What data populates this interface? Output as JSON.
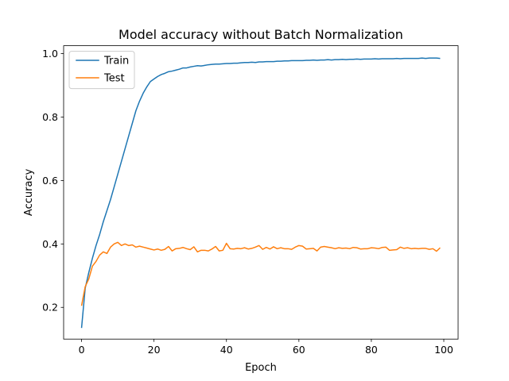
{
  "chart_data": {
    "type": "line",
    "title": "Model accuracy without Batch Normalization",
    "xlabel": "Epoch",
    "ylabel": "Accuracy",
    "xlim": [
      -4.95,
      103.95
    ],
    "ylim": [
      0.1,
      1.025
    ],
    "xticks": [
      0,
      20,
      40,
      60,
      80,
      100
    ],
    "xtick_labels": [
      "0",
      "20",
      "40",
      "60",
      "80",
      "100"
    ],
    "yticks": [
      0.2,
      0.4,
      0.6,
      0.8,
      1.0
    ],
    "ytick_labels": [
      "0.2",
      "0.4",
      "0.6",
      "0.8",
      "1.0"
    ],
    "grid": false,
    "legend": "upper-left",
    "x": [
      0,
      1,
      2,
      3,
      4,
      5,
      6,
      7,
      8,
      9,
      10,
      11,
      12,
      13,
      14,
      15,
      16,
      17,
      18,
      19,
      20,
      21,
      22,
      23,
      24,
      25,
      26,
      27,
      28,
      29,
      30,
      31,
      32,
      33,
      34,
      35,
      36,
      37,
      38,
      39,
      40,
      41,
      42,
      43,
      44,
      45,
      46,
      47,
      48,
      49,
      50,
      51,
      52,
      53,
      54,
      55,
      56,
      57,
      58,
      59,
      60,
      61,
      62,
      63,
      64,
      65,
      66,
      67,
      68,
      69,
      70,
      71,
      72,
      73,
      74,
      75,
      76,
      77,
      78,
      79,
      80,
      81,
      82,
      83,
      84,
      85,
      86,
      87,
      88,
      89,
      90,
      91,
      92,
      93,
      94,
      95,
      96,
      97,
      98,
      99
    ],
    "series": [
      {
        "name": "Train",
        "color": "#1f77b4",
        "values": [
          0.135,
          0.26,
          0.31,
          0.355,
          0.395,
          0.43,
          0.47,
          0.505,
          0.54,
          0.58,
          0.62,
          0.66,
          0.7,
          0.74,
          0.78,
          0.82,
          0.85,
          0.875,
          0.895,
          0.912,
          0.92,
          0.928,
          0.934,
          0.938,
          0.943,
          0.945,
          0.948,
          0.951,
          0.955,
          0.955,
          0.958,
          0.96,
          0.962,
          0.961,
          0.963,
          0.965,
          0.966,
          0.967,
          0.967,
          0.968,
          0.969,
          0.969,
          0.97,
          0.97,
          0.971,
          0.972,
          0.972,
          0.973,
          0.972,
          0.974,
          0.974,
          0.975,
          0.975,
          0.975,
          0.976,
          0.976,
          0.977,
          0.977,
          0.978,
          0.978,
          0.978,
          0.978,
          0.979,
          0.979,
          0.98,
          0.979,
          0.98,
          0.98,
          0.981,
          0.98,
          0.981,
          0.981,
          0.982,
          0.981,
          0.982,
          0.982,
          0.983,
          0.982,
          0.983,
          0.983,
          0.983,
          0.984,
          0.983,
          0.984,
          0.984,
          0.984,
          0.984,
          0.985,
          0.984,
          0.985,
          0.985,
          0.985,
          0.985,
          0.985,
          0.986,
          0.985,
          0.986,
          0.986,
          0.986,
          0.985
        ]
      },
      {
        "name": "Test",
        "color": "#ff7f0e",
        "values": [
          0.205,
          0.265,
          0.29,
          0.33,
          0.345,
          0.365,
          0.375,
          0.37,
          0.39,
          0.4,
          0.405,
          0.395,
          0.4,
          0.395,
          0.397,
          0.39,
          0.393,
          0.39,
          0.387,
          0.384,
          0.381,
          0.384,
          0.38,
          0.383,
          0.392,
          0.378,
          0.385,
          0.386,
          0.389,
          0.385,
          0.382,
          0.391,
          0.375,
          0.38,
          0.38,
          0.378,
          0.384,
          0.392,
          0.378,
          0.38,
          0.402,
          0.385,
          0.384,
          0.386,
          0.385,
          0.388,
          0.384,
          0.386,
          0.39,
          0.395,
          0.383,
          0.389,
          0.384,
          0.391,
          0.385,
          0.388,
          0.385,
          0.385,
          0.383,
          0.39,
          0.395,
          0.393,
          0.384,
          0.385,
          0.386,
          0.378,
          0.39,
          0.392,
          0.39,
          0.388,
          0.385,
          0.388,
          0.386,
          0.387,
          0.385,
          0.389,
          0.388,
          0.384,
          0.385,
          0.385,
          0.388,
          0.387,
          0.385,
          0.389,
          0.39,
          0.38,
          0.381,
          0.382,
          0.39,
          0.386,
          0.388,
          0.385,
          0.386,
          0.385,
          0.386,
          0.386,
          0.383,
          0.385,
          0.377,
          0.388
        ]
      }
    ]
  }
}
